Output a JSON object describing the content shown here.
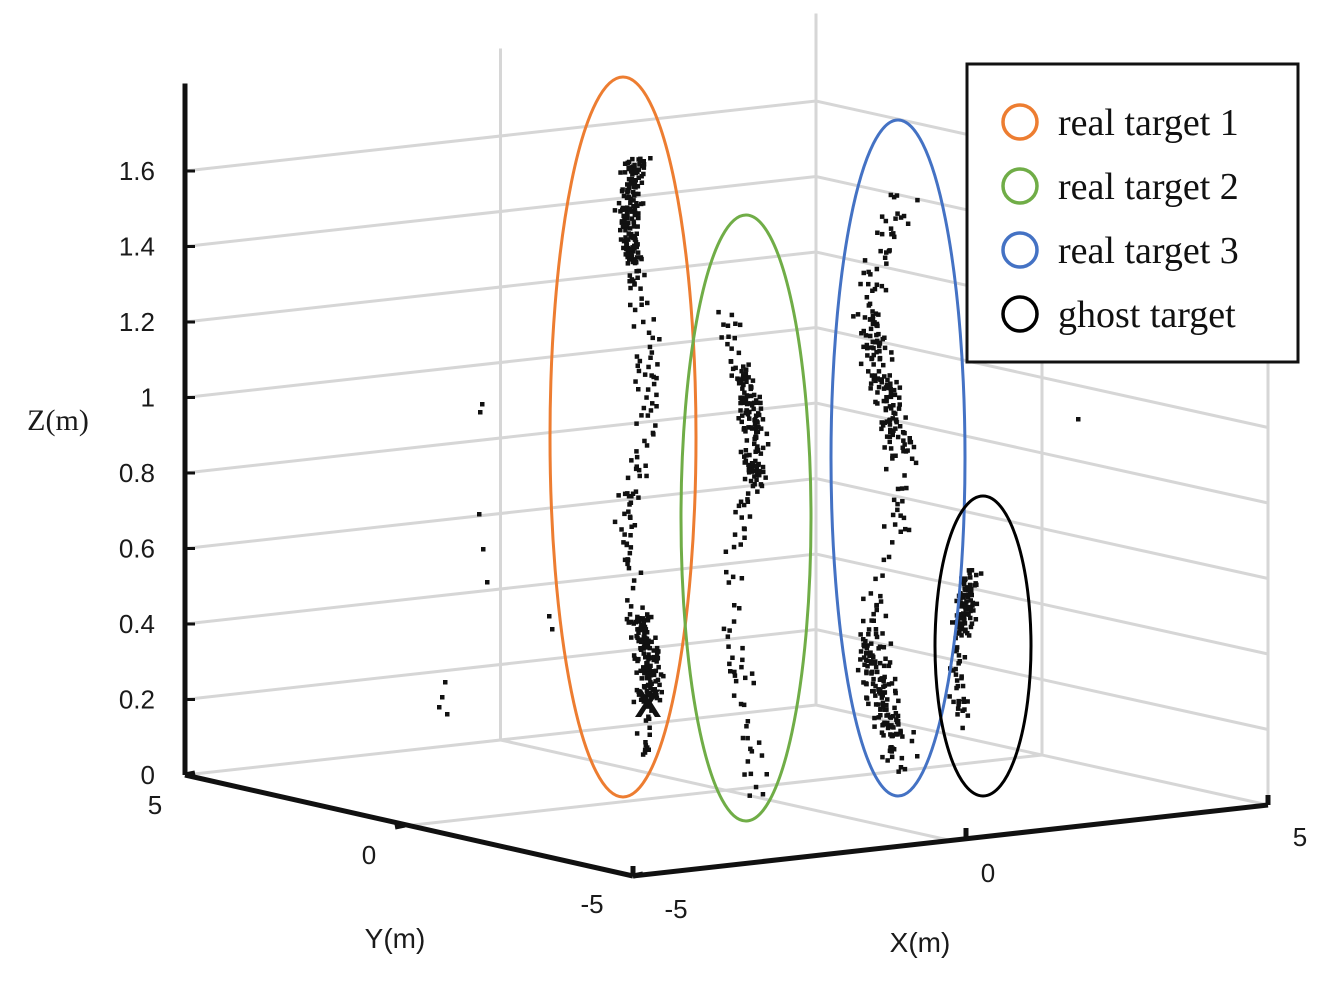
{
  "chart_data": {
    "type": "scatter",
    "projection": "3d",
    "xlabel": "X(m)",
    "ylabel": "Y(m)",
    "zlabel": "Z(m)",
    "xlim": [
      -5,
      5
    ],
    "ylim": [
      -5,
      5
    ],
    "zlim": [
      0,
      1.8
    ],
    "x_ticks": [
      "-5",
      "0",
      "5"
    ],
    "y_ticks": [
      "5",
      "0",
      "-5"
    ],
    "z_ticks": [
      "0",
      "0.2",
      "0.4",
      "0.6",
      "0.8",
      "1",
      "1.2",
      "1.4",
      "1.6"
    ],
    "grid": true,
    "legend_position": "top-right",
    "legend": [
      {
        "label": "real target 1",
        "color": "#ED7D31"
      },
      {
        "label": "real target 2",
        "color": "#70AD47"
      },
      {
        "label": "real target 3",
        "color": "#4472C4"
      },
      {
        "label": "ghost target",
        "color": "#000000"
      }
    ],
    "marker_annotation": "X",
    "point_color": "#111111",
    "clusters": [
      {
        "label": "real target 1",
        "color": "#ED7D31",
        "z_range": [
          0.05,
          1.75
        ],
        "dense_bands": [
          [
            1.45,
            1.75
          ],
          [
            0.2,
            0.45
          ]
        ]
      },
      {
        "label": "real target 2",
        "color": "#70AD47",
        "z_range": [
          0.0,
          1.4
        ],
        "dense_bands": [
          [
            0.9,
            1.25
          ]
        ]
      },
      {
        "label": "real target 3",
        "color": "#4472C4",
        "z_range": [
          0.0,
          1.65
        ],
        "dense_bands": [
          [
            0.9,
            1.3
          ],
          [
            0.1,
            0.4
          ]
        ]
      },
      {
        "label": "ghost target",
        "color": "#000000",
        "z_range": [
          0.05,
          0.55
        ],
        "dense_bands": [
          [
            0.35,
            0.5
          ]
        ]
      }
    ],
    "outliers": [
      {
        "z": 0.95
      },
      {
        "z": 0.65
      },
      {
        "z": 0.55
      },
      {
        "z": 0.38
      },
      {
        "z": 0.2
      }
    ]
  }
}
